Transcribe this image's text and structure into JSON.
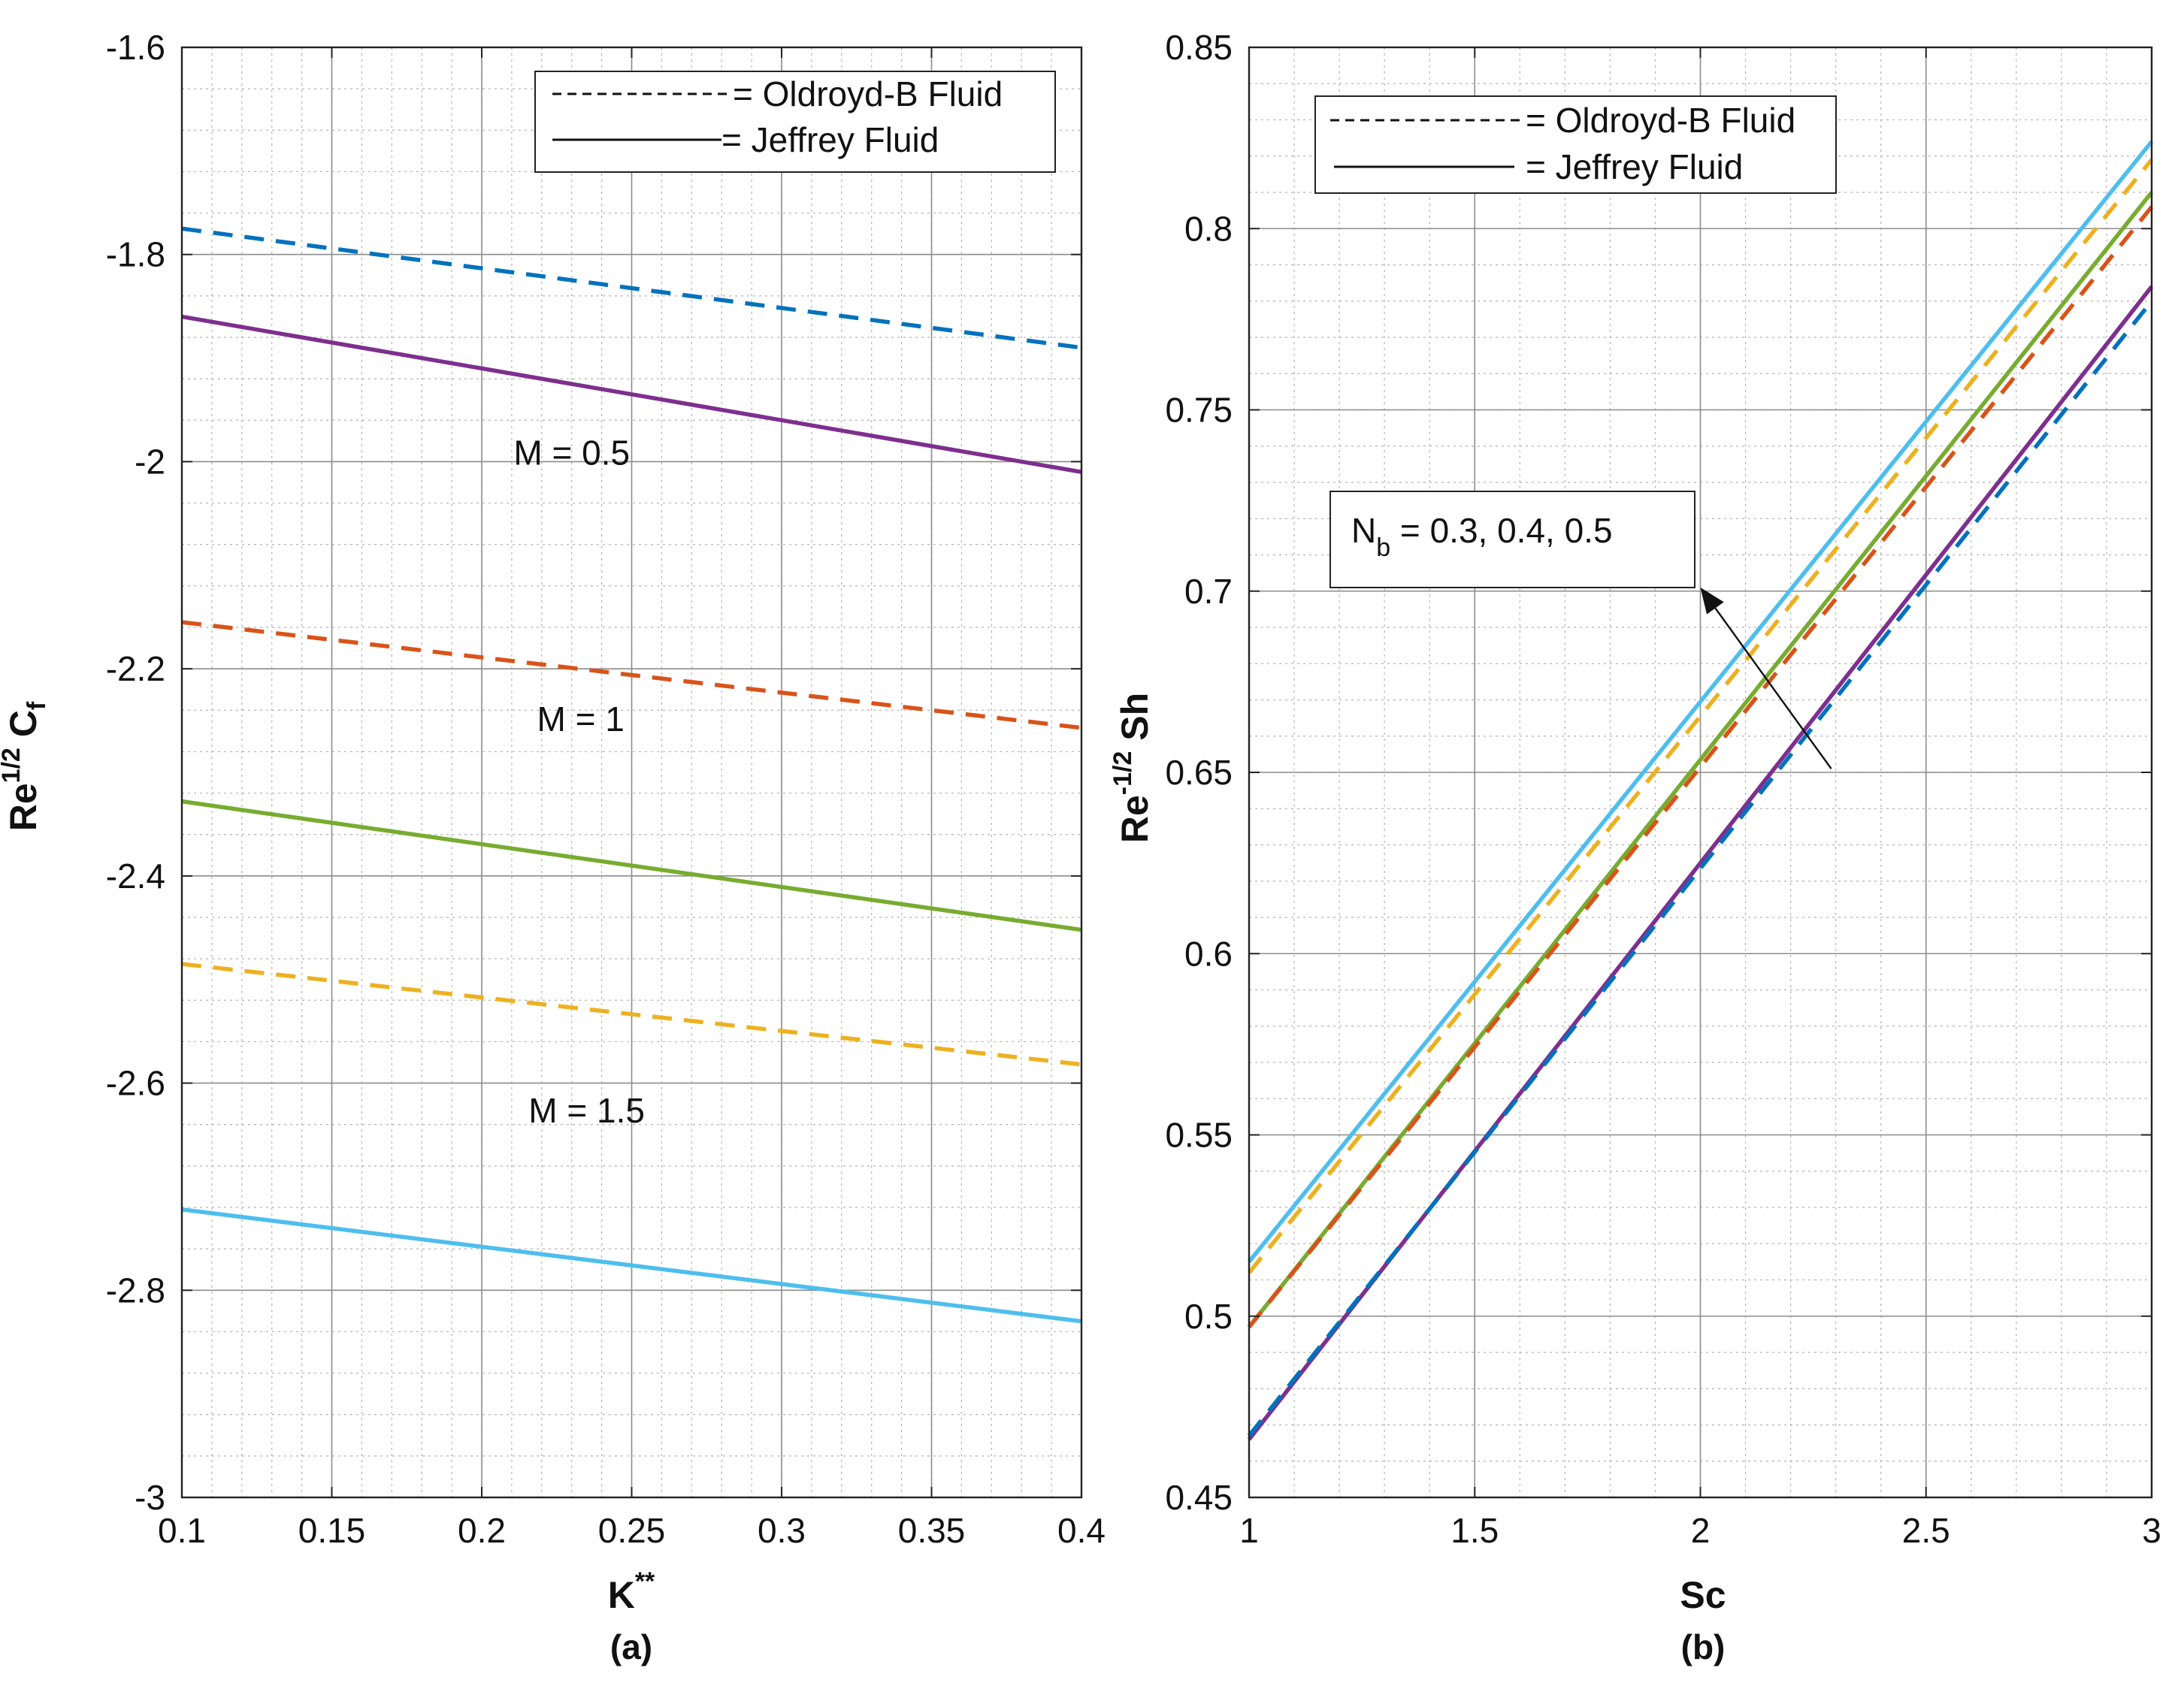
{
  "figure": {
    "panel_a_label": "(a)",
    "panel_b_label": "(b)"
  },
  "chart_data": [
    {
      "type": "line",
      "panel": "(a)",
      "title": "",
      "xlabel": "K",
      "xlabel_sup": "**",
      "ylabel": "Re",
      "ylabel_sup": "1/2",
      "ylabel_tail": " C",
      "ylabel_sub": "f",
      "xlim": [
        0.1,
        0.4
      ],
      "ylim": [
        -3.0,
        -1.6
      ],
      "xticks": [
        "0.1",
        "0.15",
        "0.2",
        "0.25",
        "0.3",
        "0.35",
        "0.4"
      ],
      "yticks": [
        "-1.6",
        "-1.8",
        "-2",
        "-2.2",
        "-2.4",
        "-2.6",
        "-2.8",
        "-3"
      ],
      "grid": true,
      "legend": {
        "placement": "top-right",
        "entries": [
          {
            "label": "= Oldroyd-B Fluid",
            "style": "dashed"
          },
          {
            "label": "= Jeffrey Fluid",
            "style": "solid"
          }
        ]
      },
      "annotations": [
        {
          "text": "M = 0.5",
          "x": 0.23,
          "y": -2.003
        },
        {
          "text": "M = 1",
          "x": 0.233,
          "y": -2.26
        },
        {
          "text": "M = 1.5",
          "x": 0.235,
          "y": -2.638
        }
      ],
      "series": [
        {
          "name": "Oldroyd-B, M = 0.5",
          "color": "#0072BD",
          "style": "dashed",
          "x": [
            0.1,
            0.4
          ],
          "y": [
            -1.775,
            -1.89
          ]
        },
        {
          "name": "Jeffrey, M = 0.5",
          "color": "#7E2F8E",
          "style": "solid",
          "x": [
            0.1,
            0.4
          ],
          "y": [
            -1.86,
            -2.01
          ]
        },
        {
          "name": "Oldroyd-B, M = 1",
          "color": "#D95319",
          "style": "dashed",
          "x": [
            0.1,
            0.4
          ],
          "y": [
            -2.155,
            -2.257
          ]
        },
        {
          "name": "Jeffrey, M = 1",
          "color": "#77AC30",
          "style": "solid",
          "x": [
            0.1,
            0.4
          ],
          "y": [
            -2.328,
            -2.452
          ]
        },
        {
          "name": "Oldroyd-B, M = 1.5",
          "color": "#EDB120",
          "style": "dashed",
          "x": [
            0.1,
            0.4
          ],
          "y": [
            -2.485,
            -2.582
          ]
        },
        {
          "name": "Jeffrey, M = 1.5",
          "color": "#4DBEEE",
          "style": "solid",
          "x": [
            0.1,
            0.4
          ],
          "y": [
            -2.722,
            -2.83
          ]
        }
      ]
    },
    {
      "type": "line",
      "panel": "(b)",
      "title": "",
      "xlabel": "Sc",
      "ylabel": "Re",
      "ylabel_sup": "-1/2",
      "ylabel_tail": " Sh",
      "xlim": [
        1,
        3
      ],
      "ylim": [
        0.45,
        0.85
      ],
      "xticks": [
        "1",
        "1.5",
        "2",
        "2.5",
        "3"
      ],
      "yticks": [
        "0.85",
        "0.8",
        "0.75",
        "0.7",
        "0.65",
        "0.6",
        "0.55",
        "0.5",
        "0.45"
      ],
      "grid": true,
      "legend": {
        "placement": "top-left",
        "entries": [
          {
            "label": "= Oldroyd-B Fluid",
            "style": "dashed"
          },
          {
            "label": "= Jeffrey Fluid",
            "style": "solid"
          }
        ]
      },
      "annotations": [
        {
          "text_main": "N",
          "text_sub": "b",
          "text_rest": " = 0.3, 0.4, 0.5",
          "arrow_from": [
            2.29,
            0.651
          ],
          "arrow_to": [
            2.0,
            0.701
          ]
        }
      ],
      "series": [
        {
          "name": "Jeffrey, Nb = 0.3",
          "color": "#7E2F8E",
          "style": "solid",
          "x": [
            1,
            3
          ],
          "y": [
            0.466,
            0.784
          ]
        },
        {
          "name": "Oldroyd-B, Nb = 0.3",
          "color": "#0072BD",
          "style": "dashed",
          "x": [
            1,
            3
          ],
          "y": [
            0.467,
            0.78
          ]
        },
        {
          "name": "Jeffrey, Nb = 0.4",
          "color": "#77AC30",
          "style": "solid",
          "x": [
            1,
            3
          ],
          "y": [
            0.497,
            0.81
          ]
        },
        {
          "name": "Oldroyd-B, Nb = 0.4",
          "color": "#D95319",
          "style": "dashed",
          "x": [
            1,
            3
          ],
          "y": [
            0.497,
            0.806
          ]
        },
        {
          "name": "Jeffrey, Nb = 0.5",
          "color": "#4DBEEE",
          "style": "solid",
          "x": [
            1,
            3
          ],
          "y": [
            0.515,
            0.824
          ]
        },
        {
          "name": "Oldroyd-B, Nb = 0.5",
          "color": "#EDB120",
          "style": "dashed",
          "x": [
            1,
            3
          ],
          "y": [
            0.512,
            0.819
          ]
        }
      ]
    }
  ]
}
